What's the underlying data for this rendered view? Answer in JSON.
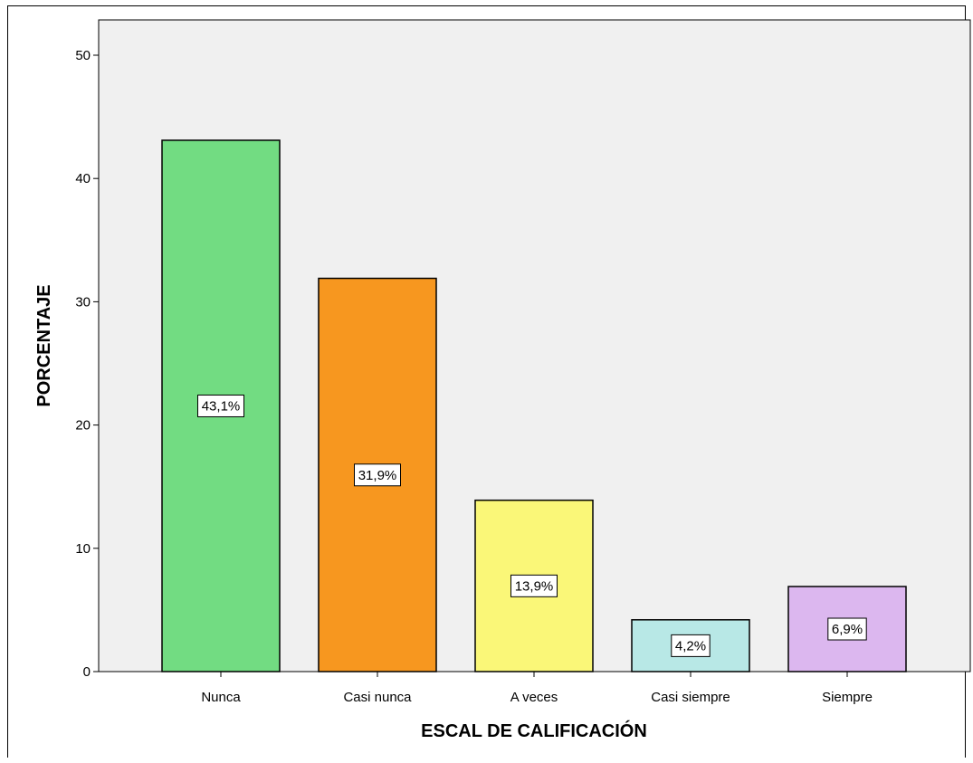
{
  "chart_data": {
    "type": "bar",
    "title": "",
    "xlabel": "ESCAL DE CALIFICACIÓN",
    "ylabel": "PORCENTAJE",
    "categories": [
      "Nunca",
      "Casi nunca",
      "A veces",
      "Casi siempre",
      "Siempre"
    ],
    "values": [
      43.1,
      31.9,
      13.9,
      4.2,
      6.9
    ],
    "data_labels": [
      "43,1%",
      "31,9%",
      "13,9%",
      "4,2%",
      "6,9%"
    ],
    "colors": [
      "#72dc82",
      "#f7971f",
      "#faf778",
      "#b8e8e6",
      "#dcb7ef"
    ],
    "ylim": [
      0,
      52
    ],
    "yticks": [
      0,
      10,
      20,
      30,
      40,
      50
    ],
    "ytick_labels": [
      "0",
      "10",
      "20",
      "30",
      "40",
      "50"
    ],
    "grid": false,
    "plot_background": "#f0f0f0"
  }
}
